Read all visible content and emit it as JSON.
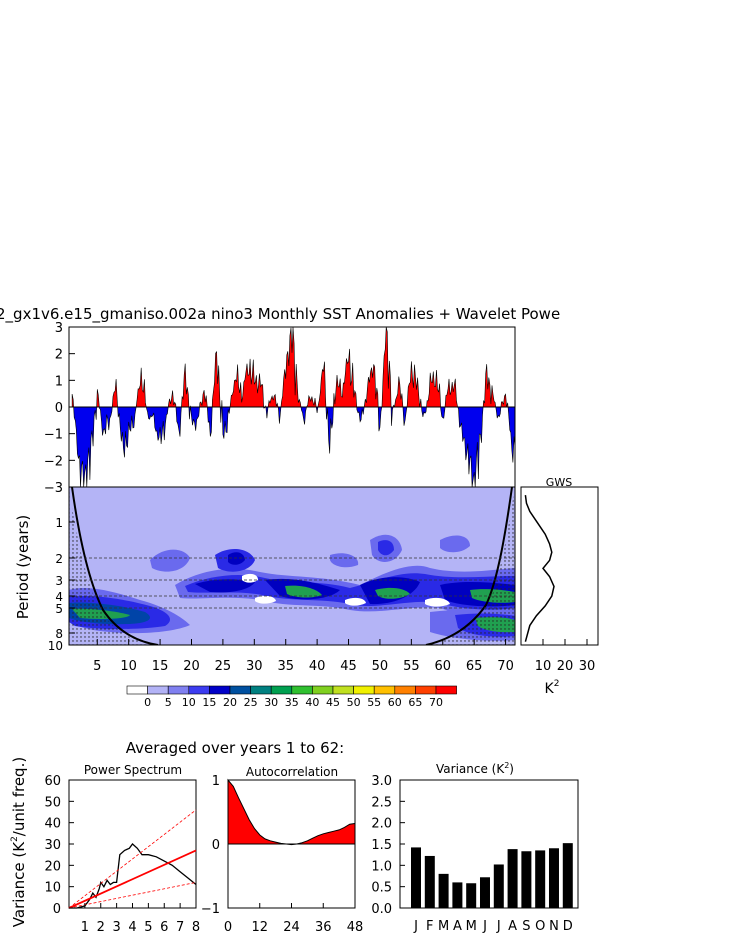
{
  "title": "2_gx1v6.e15_gmaniso.002a nino3 Monthly SST Anomalies + Wavelet Powe",
  "colors": {
    "positive": "#ff0000",
    "negative": "#0000ee",
    "power_levels": [
      "#ffffff",
      "#b3b3f6",
      "#8080f0",
      "#3c3cf0",
      "#0000c8",
      "#0050a0",
      "#008080",
      "#00a050",
      "#30c030",
      "#80d020",
      "#c0e020",
      "#f0f000",
      "#ffc000",
      "#ff8000",
      "#ff4000",
      "#ff0000"
    ]
  },
  "chart_data": [
    {
      "type": "area",
      "name": "sst-anomaly-timeseries",
      "ylim": [
        -3,
        3
      ],
      "xlim": [
        1,
        71.5
      ],
      "yticks": [
        "3",
        "2",
        "1",
        "0",
        "−1",
        "−2",
        "−3"
      ],
      "x": [
        1,
        2,
        3,
        4,
        5,
        6,
        7,
        8,
        9,
        10,
        11,
        12,
        13,
        14,
        15,
        16,
        17,
        18,
        19,
        20,
        21,
        22,
        23,
        24,
        25,
        26,
        27,
        28,
        29,
        30,
        31,
        32,
        33,
        34,
        35,
        36,
        37,
        38,
        39,
        40,
        41,
        42,
        43,
        44,
        45,
        46,
        47,
        48,
        49,
        50,
        51,
        52,
        53,
        54,
        55,
        56,
        57,
        58,
        59,
        60,
        61,
        62,
        63,
        64,
        65,
        66,
        67,
        68,
        69,
        70,
        71
      ],
      "values": [
        0.6,
        -2.0,
        -2.9,
        -1.6,
        0.5,
        -1.0,
        -0.4,
        0.8,
        -1.6,
        -1.0,
        -0.3,
        1.2,
        -0.2,
        -0.5,
        -1.3,
        -0.4,
        0.6,
        -1.0,
        1.3,
        -0.6,
        -0.5,
        0.7,
        -1.0,
        2.1,
        -1.1,
        -0.3,
        1.3,
        0.4,
        1.6,
        1.0,
        0.9,
        -0.3,
        0.6,
        -0.4,
        1.5,
        2.9,
        0.2,
        -0.4,
        0.5,
        -0.2,
        1.6,
        -1.5,
        0.9,
        0.6,
        1.9,
        0.5,
        -0.6,
        0.7,
        1.6,
        -0.8,
        2.9,
        -0.3,
        0.9,
        -0.5,
        1.4,
        0.8,
        -0.5,
        0.9,
        1.1,
        -0.4,
        0.8,
        0.7,
        -1.0,
        -1.8,
        -3.0,
        -1.2,
        1.3,
        0.3,
        -0.4,
        0.6,
        -1.5
      ]
    },
    {
      "type": "heatmap",
      "name": "wavelet-power-spectrum",
      "ylabel": "Period (years)",
      "xticks": [
        "5",
        "10",
        "15",
        "20",
        "25",
        "30",
        "35",
        "40",
        "45",
        "50",
        "55",
        "60",
        "65",
        "70"
      ],
      "yticks": [
        "1",
        "2",
        "3",
        "4",
        "5",
        "8",
        "10"
      ],
      "legend": [
        "0",
        "5",
        "10",
        "15",
        "20",
        "25",
        "30",
        "35",
        "40",
        "45",
        "50",
        "55",
        "60",
        "65",
        "70"
      ]
    },
    {
      "type": "line",
      "name": "global-wavelet-spectrum",
      "title": "GWS",
      "xlabel": "K",
      "xticks": [
        "10",
        "20",
        "30"
      ],
      "x": [
        2,
        2.5,
        4,
        7,
        9,
        11,
        12,
        13,
        14,
        13,
        10,
        13,
        15,
        14,
        11,
        7,
        4,
        2
      ],
      "y": [
        1,
        1.5,
        2.0,
        2.6,
        3.0,
        3.4,
        3.7,
        4.0,
        4.5,
        5.0,
        5.5,
        6.0,
        6.6,
        7.2,
        7.8,
        8.4,
        9.0,
        10
      ]
    },
    {
      "type": "line",
      "name": "power-spectrum",
      "title": "Power Spectrum",
      "ylabel": "Variance (K",
      "ylabel_suffix": "/unit freq.)",
      "ylim": [
        0,
        60
      ],
      "xlim": [
        0,
        8
      ],
      "yticks": [
        "60",
        "50",
        "40",
        "30",
        "20",
        "10",
        "0"
      ],
      "xticks": [
        "1",
        "2",
        "3",
        "4",
        "5",
        "6",
        "7",
        "8"
      ],
      "series": [
        {
          "x": [
            0,
            0.5,
            1.0,
            1.3,
            1.5,
            1.7,
            1.9,
            2.0,
            2.2,
            2.4,
            2.6,
            2.8,
            3.0,
            3.2,
            3.5,
            3.8,
            4.0,
            4.3,
            4.6,
            5.0,
            5.5,
            6.0,
            6.5,
            7.0,
            7.5,
            8.0
          ],
          "values": [
            0,
            0,
            1,
            4,
            7,
            5,
            9,
            12,
            10,
            13,
            11,
            12,
            12,
            25,
            27,
            28,
            30,
            28,
            25,
            25,
            24,
            22,
            20,
            17,
            14,
            11
          ]
        },
        {
          "x": [
            0,
            8
          ],
          "values": [
            0,
            27
          ]
        },
        {
          "x": [
            0,
            8
          ],
          "values": [
            0,
            46
          ]
        },
        {
          "x": [
            0,
            8
          ],
          "values": [
            0,
            12
          ]
        }
      ]
    },
    {
      "type": "area",
      "name": "autocorrelation",
      "title": "Autocorrelation",
      "ylim": [
        -1,
        1
      ],
      "xlim": [
        0,
        48
      ],
      "yticks": [
        "1",
        "0",
        "−1"
      ],
      "xticks": [
        "0",
        "12",
        "24",
        "36",
        "48"
      ],
      "x": [
        0,
        2,
        4,
        6,
        8,
        10,
        12,
        14,
        16,
        18,
        20,
        22,
        24,
        26,
        28,
        30,
        32,
        34,
        36,
        38,
        40,
        42,
        44,
        46,
        48
      ],
      "values": [
        1.0,
        0.9,
        0.72,
        0.55,
        0.38,
        0.24,
        0.14,
        0.08,
        0.05,
        0.03,
        0.01,
        0.0,
        -0.01,
        0.0,
        0.02,
        0.05,
        0.09,
        0.13,
        0.16,
        0.18,
        0.2,
        0.22,
        0.26,
        0.31,
        0.32
      ]
    },
    {
      "type": "bar",
      "name": "monthly-variance",
      "title": "Variance (K",
      "title_suffix": ")",
      "categories": [
        "J",
        "F",
        "M",
        "A",
        "M",
        "J",
        "J",
        "A",
        "S",
        "O",
        "N",
        "D"
      ],
      "values": [
        1.42,
        1.22,
        0.8,
        0.6,
        0.58,
        0.72,
        1.02,
        1.38,
        1.33,
        1.35,
        1.4,
        1.52
      ],
      "ylim": [
        0,
        3
      ],
      "yticks": [
        "3.0",
        "2.5",
        "2.0",
        "1.5",
        "1.0",
        "0.5",
        "0.0"
      ]
    }
  ],
  "averaged_label": "Averaged over years 1 to 62:",
  "superscript": "2"
}
